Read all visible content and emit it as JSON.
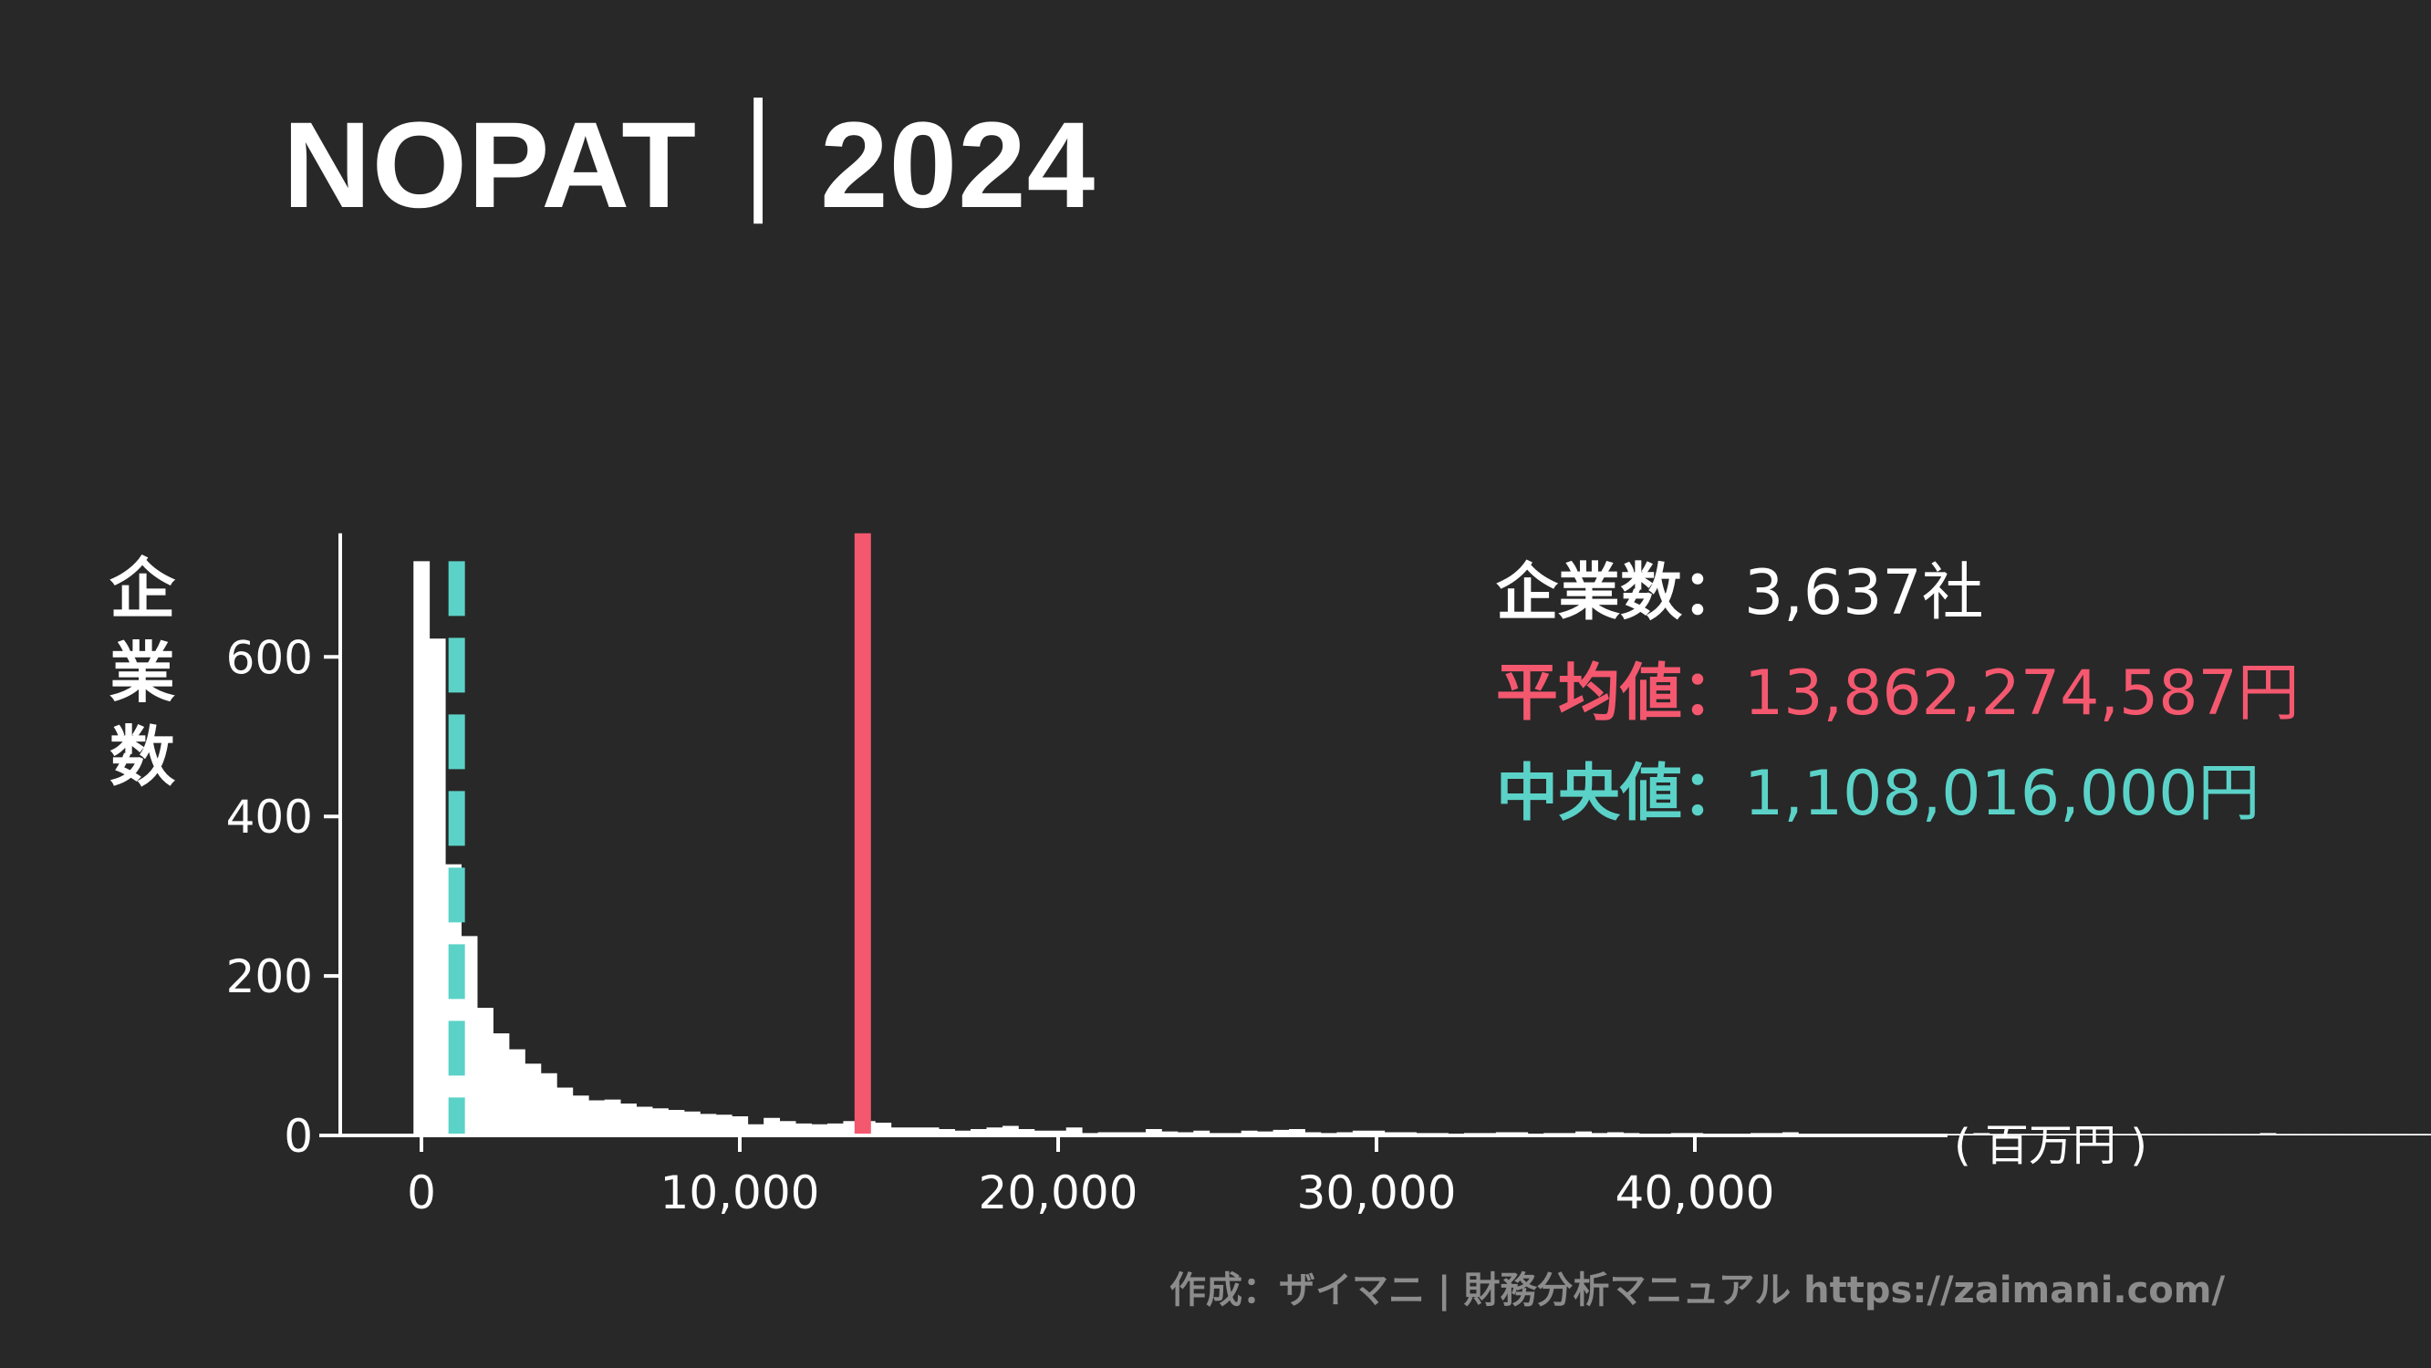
{
  "title": "NOPAT｜2024",
  "stats": {
    "companies_label": "企業数：",
    "companies_value": "3,637社",
    "mean_label": "平均値：",
    "mean_value": "13,862,274,587円",
    "median_label": "中央値：",
    "median_value": "1,108,016,000円"
  },
  "unit_label": "( 百万円 )",
  "credit": "作成：ザイマニ | 財務分析マニュアル https://zaimani.com/",
  "colors": {
    "background": "#282828",
    "bars": "#ffffff",
    "mean": "#f4586f",
    "median": "#5bd2c8",
    "axis": "#ffffff"
  },
  "chart_data": {
    "type": "bar",
    "title": "NOPAT｜2024",
    "ylabel": "企業数",
    "xlabel": "( 百万円 )",
    "xlim": [
      -3000,
      48000
    ],
    "ylim": [
      0,
      755
    ],
    "x_ticks": [
      0,
      10000,
      20000,
      30000,
      40000
    ],
    "x_tick_labels": [
      "0",
      "10,000",
      "20,000",
      "30,000",
      "40,000"
    ],
    "y_ticks": [
      0,
      200,
      400,
      600
    ],
    "y_tick_labels": [
      "0",
      "200",
      "400",
      "600"
    ],
    "bin_width": 500,
    "bin_start": -250,
    "counts": [
      720,
      623,
      340,
      250,
      160,
      128,
      108,
      90,
      78,
      60,
      50,
      44,
      45,
      40,
      36,
      34,
      32,
      30,
      27,
      26,
      24,
      14,
      22,
      18,
      15,
      14,
      15,
      18,
      18,
      16,
      10,
      10,
      10,
      8,
      6,
      8,
      10,
      12,
      8,
      6,
      6,
      10,
      3,
      4,
      4,
      4,
      8,
      5,
      4,
      6,
      3,
      3,
      6,
      5,
      7,
      8,
      4,
      3,
      4,
      6,
      6,
      4,
      4,
      3,
      3,
      2,
      3,
      3,
      4,
      4,
      2,
      3,
      3,
      5,
      3,
      4,
      3,
      2,
      2,
      3,
      3,
      2,
      2,
      2,
      3,
      3,
      4,
      2,
      2,
      2,
      2,
      2,
      2,
      2,
      2,
      2,
      2,
      2,
      3,
      2,
      2,
      2,
      2,
      2,
      2,
      2,
      2,
      2,
      2,
      2,
      2,
      2,
      2,
      2,
      2,
      2,
      3,
      2,
      2,
      2,
      2,
      2,
      2,
      2,
      2,
      2,
      2,
      2,
      2,
      2,
      2,
      2,
      2,
      2,
      2,
      2,
      2,
      2,
      2,
      2,
      2,
      2,
      2,
      2,
      2,
      2,
      2,
      2,
      2,
      2,
      2,
      2,
      2,
      2,
      2,
      2,
      2,
      2,
      2,
      2,
      2,
      2,
      2,
      2,
      2,
      2,
      2,
      2,
      2,
      2,
      2,
      2,
      2,
      2,
      2,
      2,
      2,
      2,
      2,
      2,
      2,
      2,
      2,
      2,
      2,
      2,
      2,
      2,
      2,
      2,
      2,
      2
    ],
    "mean_line": 13862,
    "median_line": 1108,
    "legend": "none",
    "grid": false
  }
}
